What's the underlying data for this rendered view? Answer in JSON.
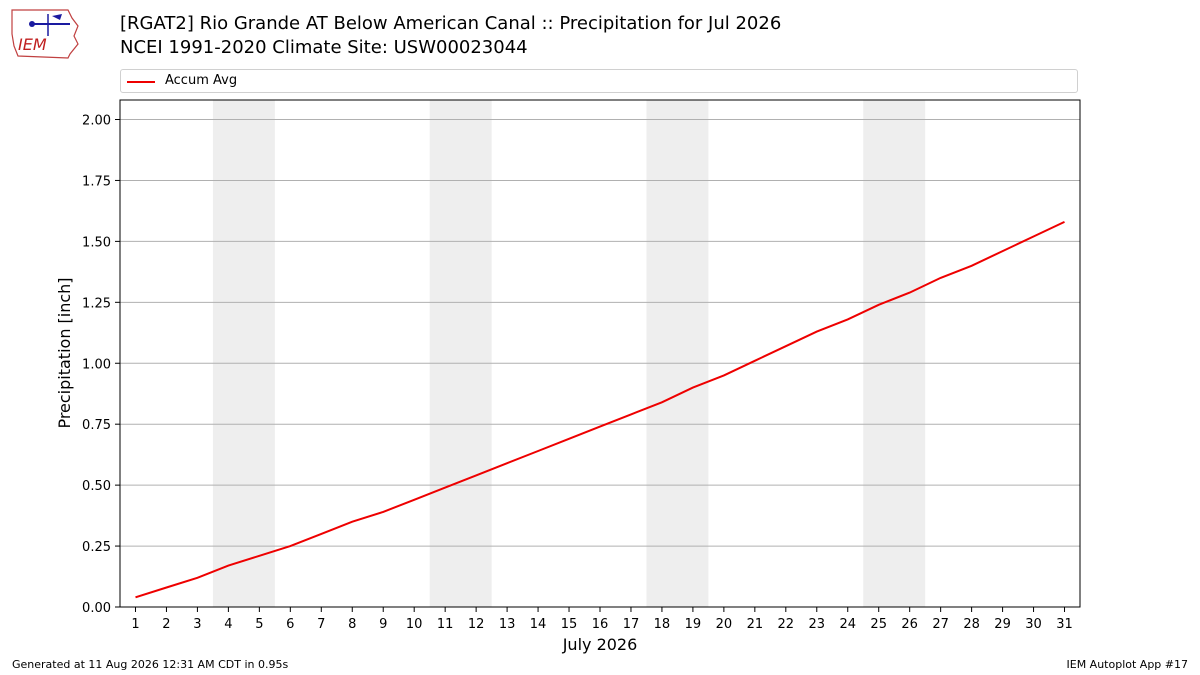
{
  "header": {
    "title_line1": "[RGAT2] Rio Grande  AT Below American Canal :: Precipitation for Jul 2026",
    "title_line2": "NCEI 1991-2020 Climate Site: USW00023044"
  },
  "logo": {
    "text": "IEM",
    "icon": "iem-iowa-map-logo"
  },
  "footer": {
    "generated": "Generated at 11 Aug 2026 12:31 AM CDT in 0.95s",
    "app": "IEM Autoplot App #17"
  },
  "colors": {
    "series": "#ee0000",
    "shade": "#eeeeee",
    "grid": "#b0b0b0"
  },
  "chart_data": {
    "type": "line",
    "xlabel": "July 2026",
    "ylabel": "Precipitation [inch]",
    "x": [
      1,
      2,
      3,
      4,
      5,
      6,
      7,
      8,
      9,
      10,
      11,
      12,
      13,
      14,
      15,
      16,
      17,
      18,
      19,
      20,
      21,
      22,
      23,
      24,
      25,
      26,
      27,
      28,
      29,
      30,
      31
    ],
    "xlim": [
      0.5,
      31.5
    ],
    "ylim": [
      0,
      2.08
    ],
    "yticks": [
      "0.00",
      "0.25",
      "0.50",
      "0.75",
      "1.00",
      "1.25",
      "1.50",
      "1.75",
      "2.00"
    ],
    "grid": "horizontal",
    "legend_position": "top",
    "shaded_weekends": [
      [
        4,
        5
      ],
      [
        11,
        12
      ],
      [
        18,
        19
      ],
      [
        25,
        26
      ]
    ],
    "series": [
      {
        "name": "Accum Avg",
        "values": [
          0.04,
          0.08,
          0.12,
          0.17,
          0.21,
          0.25,
          0.3,
          0.35,
          0.39,
          0.44,
          0.49,
          0.54,
          0.59,
          0.64,
          0.69,
          0.74,
          0.79,
          0.84,
          0.9,
          0.95,
          1.01,
          1.07,
          1.13,
          1.18,
          1.24,
          1.29,
          1.35,
          1.4,
          1.46,
          1.52,
          1.58
        ]
      }
    ]
  }
}
